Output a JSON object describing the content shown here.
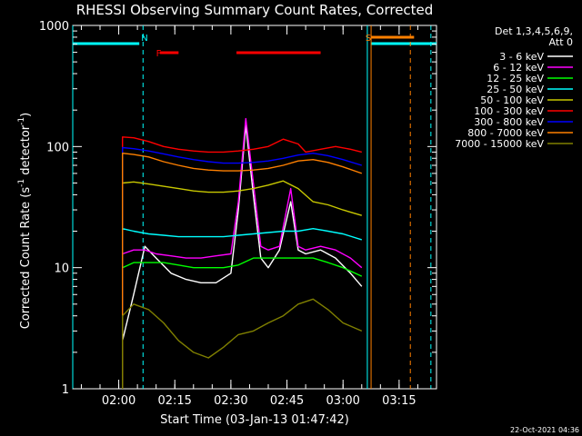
{
  "chart_data": {
    "type": "line",
    "title": "RHESSI Observing Summary Count Rates, Corrected",
    "xlabel": "Start Time (03-Jan-13 01:47:42)",
    "ylabel": "Corrected Count Rate (s⁻¹ detector⁻¹)",
    "ylabel_main": "Corrected Count Rate (s",
    "ylabel_sup1": "-1",
    "ylabel_mid": " detector",
    "ylabel_sup2": "-1",
    "ylabel_end": ")",
    "yscale": "log",
    "ylim": [
      1,
      1000
    ],
    "xlim": [
      "01:47:42",
      "03:25:00"
    ],
    "x_ticks": [
      "02:00",
      "02:15",
      "02:30",
      "02:45",
      "03:00",
      "03:15"
    ],
    "y_ticks": [
      "1",
      "10",
      "100",
      "1000"
    ],
    "legend_header": [
      "Det 1,3,4,5,6,9,",
      "Att 0"
    ],
    "legend_position": "right",
    "footer_date": "22-Oct-2021 04:36",
    "annotations": [
      {
        "text": "N",
        "x": "02:06",
        "color": "#00ffff"
      },
      {
        "text": "F",
        "x": "02:10",
        "color": "#ff0000"
      },
      {
        "text": "S",
        "x": "03:06",
        "color": "#ff8000"
      }
    ],
    "bars": [
      {
        "name": "night",
        "color": "#00ffff",
        "from": "01:47:42",
        "to": "02:05:30"
      },
      {
        "name": "night",
        "color": "#00ffff",
        "from": "03:07:30",
        "to": "03:25:00"
      },
      {
        "name": "flare",
        "color": "#ff0000",
        "from": "02:11:00",
        "to": "02:16:00"
      },
      {
        "name": "flare",
        "color": "#ff0000",
        "from": "02:31:30",
        "to": "02:54:00"
      },
      {
        "name": "saa",
        "color": "#ff8000",
        "from": "03:07:30",
        "to": "03:19:00"
      }
    ],
    "vlines": [
      {
        "x": "01:47:42",
        "color": "#00ffff",
        "style": "solid"
      },
      {
        "x": "02:06:30",
        "color": "#00ffff",
        "style": "dashed"
      },
      {
        "x": "03:06:30",
        "color": "#00ffff",
        "style": "solid"
      },
      {
        "x": "03:07:30",
        "color": "#ff8000",
        "style": "solid"
      },
      {
        "x": "03:18:00",
        "color": "#ff8000",
        "style": "dashed"
      },
      {
        "x": "03:23:30",
        "color": "#00ffff",
        "style": "dashed"
      }
    ],
    "series": [
      {
        "name": "3 - 6 keV",
        "color": "#ffffff",
        "x": [
          "02:01",
          "02:04",
          "02:07",
          "02:10",
          "02:14",
          "02:18",
          "02:22",
          "02:26",
          "02:30",
          "02:32",
          "02:34",
          "02:36",
          "02:38",
          "02:40",
          "02:43",
          "02:46",
          "02:48",
          "02:50",
          "02:54",
          "02:58",
          "03:02",
          "03:05"
        ],
        "values": [
          2.5,
          6,
          15,
          12,
          9,
          8,
          7.5,
          7.5,
          9,
          30,
          150,
          40,
          12,
          10,
          14,
          35,
          14,
          13,
          14,
          12,
          9,
          7
        ]
      },
      {
        "name": "6 - 12 keV",
        "color": "#ff00ff",
        "x": [
          "02:01",
          "02:04",
          "02:07",
          "02:10",
          "02:14",
          "02:18",
          "02:22",
          "02:26",
          "02:30",
          "02:32",
          "02:34",
          "02:36",
          "02:38",
          "02:40",
          "02:43",
          "02:46",
          "02:48",
          "02:50",
          "02:54",
          "02:58",
          "03:02",
          "03:05"
        ],
        "values": [
          13,
          14,
          14,
          13,
          12.5,
          12,
          12,
          12.5,
          13,
          35,
          170,
          50,
          15,
          14,
          15,
          45,
          15,
          14,
          15,
          14,
          12,
          10
        ]
      },
      {
        "name": "12 - 25 keV",
        "color": "#00ff00",
        "x": [
          "02:01",
          "02:04",
          "02:08",
          "02:12",
          "02:16",
          "02:20",
          "02:24",
          "02:28",
          "02:32",
          "02:36",
          "02:40",
          "02:44",
          "02:48",
          "02:52",
          "02:56",
          "03:00",
          "03:05"
        ],
        "values": [
          10,
          11,
          11,
          11,
          10.5,
          10,
          10,
          10,
          10.5,
          12,
          12,
          12,
          12,
          12,
          11,
          10,
          8.5
        ]
      },
      {
        "name": "25 - 50 keV",
        "color": "#00ffff",
        "x": [
          "02:01",
          "02:04",
          "02:08",
          "02:12",
          "02:16",
          "02:20",
          "02:24",
          "02:28",
          "02:32",
          "02:36",
          "02:40",
          "02:44",
          "02:48",
          "02:52",
          "02:56",
          "03:00",
          "03:05"
        ],
        "values": [
          21,
          20,
          19,
          18.5,
          18,
          18,
          18,
          18,
          18.5,
          19,
          19.5,
          20,
          20,
          21,
          20,
          19,
          17
        ]
      },
      {
        "name": "50 - 100 keV",
        "color": "#c8c800",
        "x": [
          "02:01",
          "02:04",
          "02:08",
          "02:12",
          "02:16",
          "02:20",
          "02:24",
          "02:28",
          "02:32",
          "02:36",
          "02:40",
          "02:44",
          "02:48",
          "02:52",
          "02:56",
          "03:00",
          "03:05"
        ],
        "values": [
          50,
          51,
          49,
          47,
          45,
          43,
          42,
          42,
          43,
          45,
          48,
          52,
          45,
          35,
          33,
          30,
          27
        ]
      },
      {
        "name": "100 - 300 keV",
        "color": "#ff0000",
        "x": [
          "02:01",
          "02:04",
          "02:08",
          "02:12",
          "02:16",
          "02:20",
          "02:24",
          "02:28",
          "02:32",
          "02:36",
          "02:40",
          "02:44",
          "02:48",
          "02:50",
          "02:54",
          "02:58",
          "03:02",
          "03:05"
        ],
        "values": [
          120,
          118,
          110,
          100,
          95,
          92,
          90,
          90,
          92,
          95,
          100,
          115,
          105,
          90,
          95,
          100,
          95,
          90
        ]
      },
      {
        "name": "300 - 800 keV",
        "color": "#0000ff",
        "x": [
          "02:01",
          "02:04",
          "02:08",
          "02:12",
          "02:16",
          "02:20",
          "02:24",
          "02:28",
          "02:32",
          "02:36",
          "02:40",
          "02:44",
          "02:48",
          "02:52",
          "02:56",
          "03:00",
          "03:05"
        ],
        "values": [
          98,
          96,
          92,
          87,
          82,
          78,
          75,
          73,
          73,
          74,
          76,
          80,
          85,
          88,
          84,
          78,
          70
        ]
      },
      {
        "name": "800 - 7000 keV",
        "color": "#ff8000",
        "x": [
          "02:01",
          "02:04",
          "02:08",
          "02:12",
          "02:16",
          "02:20",
          "02:24",
          "02:28",
          "02:32",
          "02:36",
          "02:40",
          "02:44",
          "02:48",
          "02:52",
          "02:56",
          "03:00",
          "03:05"
        ],
        "values": [
          88,
          86,
          82,
          75,
          70,
          66,
          64,
          63,
          63,
          64,
          66,
          70,
          76,
          78,
          74,
          68,
          60
        ]
      },
      {
        "name": "7000 - 15000 keV",
        "color": "#808000",
        "x": [
          "02:01",
          "02:04",
          "02:08",
          "02:12",
          "02:16",
          "02:20",
          "02:24",
          "02:28",
          "02:32",
          "02:36",
          "02:40",
          "02:44",
          "02:48",
          "02:52",
          "02:56",
          "03:00",
          "03:05"
        ],
        "values": [
          4,
          5,
          4.5,
          3.5,
          2.5,
          2,
          1.8,
          2.2,
          2.8,
          3,
          3.5,
          4,
          5,
          5.5,
          4.5,
          3.5,
          3
        ]
      }
    ]
  }
}
